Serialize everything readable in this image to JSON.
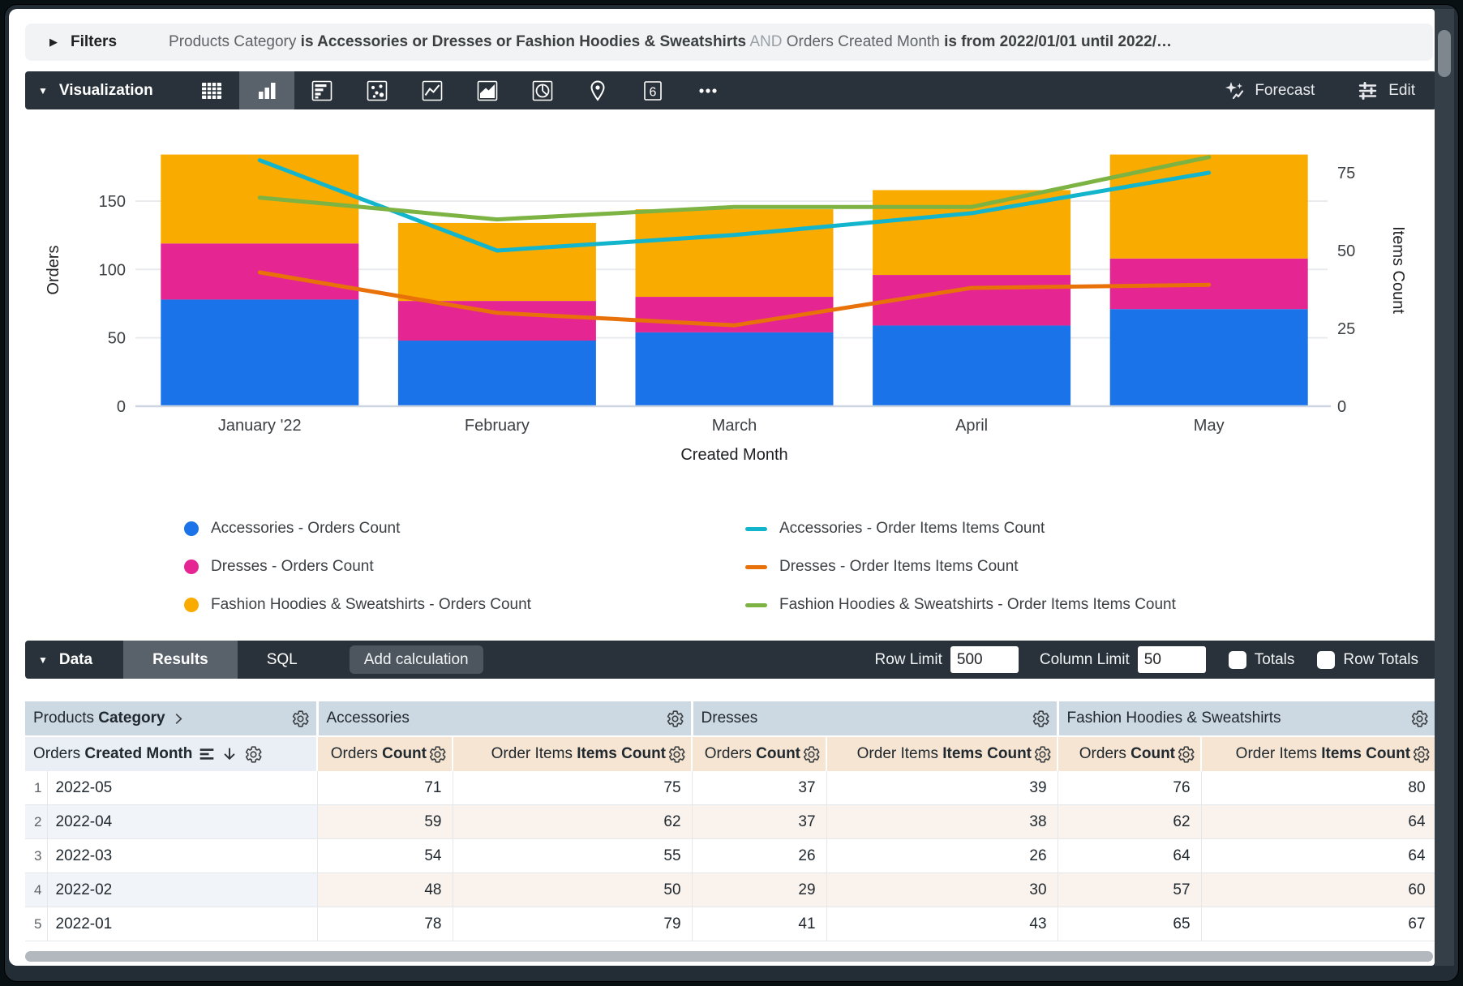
{
  "filters_bar": {
    "label": "Filters",
    "segments": [
      {
        "text": "Products Category ",
        "style": "name"
      },
      {
        "text": "is Accessories or Dresses or Fashion Hoodies & Sweatshirts",
        "style": "value"
      },
      {
        "text": " AND ",
        "style": "conj"
      },
      {
        "text": "Orders Created Month ",
        "style": "name"
      },
      {
        "text": "is from 2022/01/01 until 2022/…",
        "style": "value"
      }
    ]
  },
  "viz_toolbar": {
    "title": "Visualization",
    "single_value_glyph": "6",
    "forecast_label": "Forecast",
    "edit_label": "Edit"
  },
  "chart_data": {
    "type": "combo",
    "categories": [
      "January '22",
      "February",
      "March",
      "April",
      "May"
    ],
    "x_axis_label": "Created Month",
    "left_axis": {
      "label": "Orders",
      "ticks": [
        0,
        50,
        100,
        150
      ]
    },
    "right_axis": {
      "label": "Items Count",
      "ticks": [
        0,
        25,
        50,
        75
      ]
    },
    "bar_series": [
      {
        "name": "Accessories - Orders Count",
        "color": "#1a73e8",
        "values": [
          78,
          48,
          54,
          59,
          71
        ]
      },
      {
        "name": "Dresses - Orders Count",
        "color": "#e52592",
        "values": [
          41,
          29,
          26,
          37,
          37
        ]
      },
      {
        "name": "Fashion Hoodies & Sweatshirts - Orders Count",
        "color": "#f9ab00",
        "values": [
          65,
          57,
          64,
          62,
          76
        ]
      }
    ],
    "line_series": [
      {
        "name": "Accessories - Order Items Items Count",
        "color": "#12b5cb",
        "values": [
          79,
          50,
          55,
          62,
          75
        ]
      },
      {
        "name": "Dresses - Order Items Items Count",
        "color": "#e8710a",
        "values": [
          43,
          30,
          26,
          38,
          39
        ]
      },
      {
        "name": "Fashion Hoodies & Sweatshirts - Order Items Items Count",
        "color": "#7cb342",
        "values": [
          67,
          60,
          64,
          64,
          80
        ]
      }
    ]
  },
  "data_bar": {
    "title": "Data",
    "tabs": [
      "Results",
      "SQL"
    ],
    "active_tab": "Results",
    "add_calculation_label": "Add calculation",
    "row_limit_label": "Row Limit",
    "row_limit_value": "500",
    "column_limit_label": "Column Limit",
    "column_limit_value": "50",
    "totals_label": "Totals",
    "row_totals_label": "Row Totals"
  },
  "table": {
    "dimension_group": {
      "regular": "Products ",
      "bold": "Category"
    },
    "measure_groups": [
      "Accessories",
      "Dresses",
      "Fashion Hoodies & Sweatshirts"
    ],
    "dimension_header": {
      "regular": "Orders ",
      "bold": "Created Month"
    },
    "measure_headers": [
      {
        "regular": "Orders ",
        "bold": "Count"
      },
      {
        "regular": "Order Items ",
        "bold": "Items Count"
      }
    ],
    "rows": [
      {
        "n": 1,
        "month": "2022-05",
        "values": [
          71,
          75,
          37,
          39,
          76,
          80
        ]
      },
      {
        "n": 2,
        "month": "2022-04",
        "values": [
          59,
          62,
          37,
          38,
          62,
          64
        ]
      },
      {
        "n": 3,
        "month": "2022-03",
        "values": [
          54,
          55,
          26,
          26,
          64,
          64
        ]
      },
      {
        "n": 4,
        "month": "2022-02",
        "values": [
          48,
          50,
          29,
          30,
          57,
          60
        ]
      },
      {
        "n": 5,
        "month": "2022-01",
        "values": [
          78,
          79,
          41,
          43,
          65,
          67
        ]
      }
    ]
  }
}
